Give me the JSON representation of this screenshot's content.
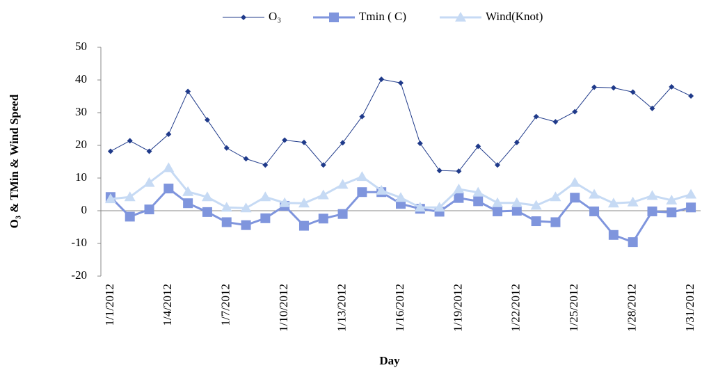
{
  "chart_data": {
    "type": "line",
    "x_label": "Day",
    "y_label": "O₃ & TMin  & Wind Speed",
    "categories": [
      "1/1/2012",
      null,
      null,
      "1/4/2012",
      null,
      null,
      "1/7/2012",
      null,
      null,
      "1/10/2012",
      null,
      null,
      "1/13/2012",
      null,
      null,
      "1/16/2012",
      null,
      null,
      "1/19/2012",
      null,
      null,
      "1/22/2012",
      null,
      null,
      "1/25/2012",
      null,
      null,
      "1/28/2012",
      null,
      null,
      "1/31/2012"
    ],
    "series": [
      {
        "name": "O₃",
        "color": "#1f3a8a",
        "marker": "diamond",
        "values": [
          18.2,
          21.4,
          18.2,
          23.4,
          36.5,
          27.8,
          19.2,
          15.9,
          14.0,
          21.6,
          20.9,
          14.0,
          20.8,
          28.8,
          40.2,
          39.1,
          20.6,
          12.3,
          12.1,
          19.7,
          14.0,
          20.9,
          28.8,
          27.2,
          30.3,
          37.8,
          37.6,
          36.3,
          31.3,
          37.9,
          35.1
        ]
      },
      {
        "name": "Tmin ( C)",
        "color": "#7f95dd",
        "marker": "square",
        "values": [
          4.2,
          -1.8,
          0.4,
          6.8,
          2.3,
          -0.4,
          -3.5,
          -4.4,
          -2.3,
          1.5,
          -4.6,
          -2.4,
          -1.0,
          5.7,
          5.7,
          2.1,
          0.6,
          -0.3,
          3.9,
          2.9,
          -0.2,
          0.0,
          -3.2,
          -3.5,
          4.0,
          -0.2,
          -7.4,
          -9.6,
          -0.2,
          -0.5,
          1.0
        ]
      },
      {
        "name": "Wind(Knot)",
        "color": "#c6daf4",
        "marker": "triangle",
        "values": [
          3.6,
          4.2,
          8.6,
          13.1,
          5.8,
          4.2,
          1.0,
          0.8,
          4.2,
          2.4,
          2.3,
          4.8,
          8.0,
          10.4,
          6.2,
          4.0,
          1.0,
          1.0,
          6.6,
          5.6,
          2.4,
          2.4,
          1.6,
          4.2,
          8.6,
          5.0,
          2.3,
          2.6,
          4.6,
          3.2,
          5.0
        ]
      }
    ],
    "ylim": [
      -20,
      50
    ],
    "yticks": [
      -20,
      -10,
      0,
      10,
      20,
      30,
      40,
      50
    ],
    "grid": false,
    "legend": "top"
  }
}
